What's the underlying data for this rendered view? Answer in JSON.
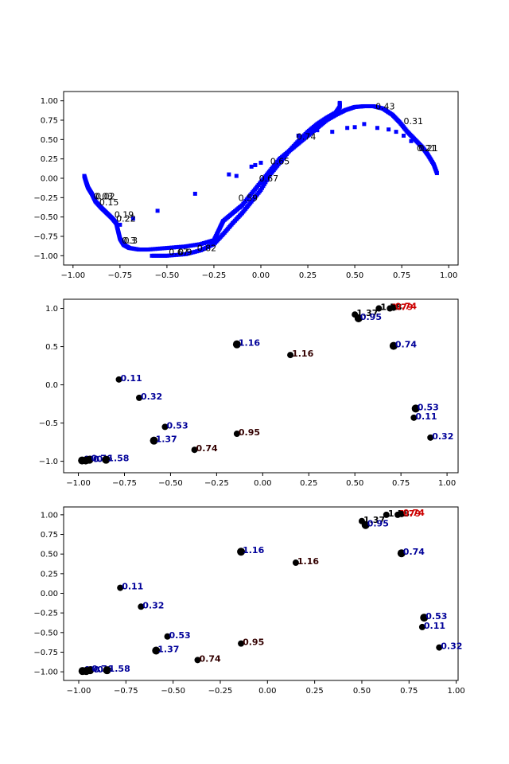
{
  "chart_data": [
    {
      "type": "scatter",
      "panel": "top",
      "xlim": [
        -1.05,
        1.05
      ],
      "ylim": [
        -1.12,
        1.12
      ],
      "xticks": [
        -1.0,
        -0.75,
        -0.5,
        -0.25,
        0.0,
        0.25,
        0.5,
        0.75,
        1.0
      ],
      "yticks": [
        1.0,
        0.75,
        0.5,
        0.25,
        0.0,
        -0.25,
        -0.5,
        -0.75,
        -1.0
      ],
      "xtick_labels": [
        "−1.00",
        "−0.75",
        "−0.50",
        "−0.25",
        "0.00",
        "0.25",
        "0.50",
        "0.75",
        "1.00"
      ],
      "ytick_labels": [
        "1.00",
        "0.75",
        "0.50",
        "0.25",
        "0.00",
        "−0.25",
        "−0.50",
        "−0.75",
        "−1.00"
      ],
      "marker_color": "#0000ff",
      "curve": {
        "outer": [
          [
            -0.94,
            0.03
          ],
          [
            -0.93,
            -0.05
          ],
          [
            -0.92,
            -0.12
          ],
          [
            -0.9,
            -0.2
          ],
          [
            -0.88,
            -0.3
          ],
          [
            -0.85,
            -0.38
          ],
          [
            -0.82,
            -0.45
          ],
          [
            -0.79,
            -0.52
          ],
          [
            -0.77,
            -0.58
          ],
          [
            -0.76,
            -0.68
          ],
          [
            -0.75,
            -0.78
          ],
          [
            -0.73,
            -0.86
          ],
          [
            -0.7,
            -0.9
          ],
          [
            -0.65,
            -0.92
          ],
          [
            -0.6,
            -0.92
          ],
          [
            -0.5,
            -0.9
          ],
          [
            -0.4,
            -0.88
          ],
          [
            -0.32,
            -0.85
          ],
          [
            -0.25,
            -0.8
          ],
          [
            -0.22,
            -0.65
          ],
          [
            -0.2,
            -0.55
          ],
          [
            -0.15,
            -0.45
          ],
          [
            -0.1,
            -0.35
          ],
          [
            -0.05,
            -0.2
          ],
          [
            0.0,
            -0.05
          ],
          [
            0.05,
            0.1
          ],
          [
            0.1,
            0.25
          ],
          [
            0.15,
            0.35
          ],
          [
            0.2,
            0.45
          ],
          [
            0.25,
            0.55
          ],
          [
            0.3,
            0.65
          ],
          [
            0.35,
            0.75
          ],
          [
            0.4,
            0.82
          ],
          [
            0.45,
            0.88
          ],
          [
            0.5,
            0.92
          ],
          [
            0.55,
            0.93
          ],
          [
            0.6,
            0.93
          ],
          [
            0.65,
            0.9
          ],
          [
            0.7,
            0.82
          ],
          [
            0.74,
            0.72
          ],
          [
            0.78,
            0.6
          ],
          [
            0.82,
            0.5
          ],
          [
            0.86,
            0.4
          ],
          [
            0.89,
            0.3
          ],
          [
            0.92,
            0.18
          ],
          [
            0.94,
            0.05
          ]
        ],
        "inner": [
          [
            -0.58,
            -1.0
          ],
          [
            -0.5,
            -1.0
          ],
          [
            -0.4,
            -0.98
          ],
          [
            -0.32,
            -0.93
          ],
          [
            -0.25,
            -0.85
          ],
          [
            -0.2,
            -0.72
          ],
          [
            -0.15,
            -0.58
          ],
          [
            -0.1,
            -0.45
          ],
          [
            -0.05,
            -0.3
          ],
          [
            0.0,
            -0.15
          ],
          [
            0.05,
            0.05
          ],
          [
            0.1,
            0.2
          ],
          [
            0.15,
            0.35
          ],
          [
            0.2,
            0.48
          ],
          [
            0.25,
            0.6
          ],
          [
            0.3,
            0.7
          ],
          [
            0.35,
            0.78
          ],
          [
            0.4,
            0.85
          ],
          [
            0.42,
            0.92
          ],
          [
            0.42,
            0.98
          ]
        ],
        "scatter": [
          [
            -0.68,
            -0.52
          ],
          [
            -0.75,
            -0.6
          ],
          [
            -0.55,
            -0.42
          ],
          [
            -0.35,
            -0.2
          ],
          [
            -0.17,
            0.05
          ],
          [
            -0.13,
            0.03
          ],
          [
            -0.05,
            0.15
          ],
          [
            -0.03,
            0.17
          ],
          [
            0.0,
            0.2
          ],
          [
            0.1,
            0.25
          ],
          [
            0.2,
            0.55
          ],
          [
            0.3,
            0.62
          ],
          [
            0.38,
            0.6
          ],
          [
            0.46,
            0.65
          ],
          [
            0.5,
            0.66
          ],
          [
            0.55,
            0.7
          ],
          [
            0.62,
            0.65
          ],
          [
            0.68,
            0.63
          ],
          [
            0.72,
            0.6
          ],
          [
            0.76,
            0.55
          ],
          [
            0.8,
            0.48
          ]
        ]
      },
      "labels": [
        {
          "x": 0.61,
          "y": 0.93,
          "text": "0.43"
        },
        {
          "x": 0.76,
          "y": 0.74,
          "text": "0.31"
        },
        {
          "x": 0.84,
          "y": 0.39,
          "text": "0.21"
        },
        {
          "x": 0.83,
          "y": 0.39,
          "text": "0.21"
        },
        {
          "x": 0.19,
          "y": 0.54,
          "text": "0.74"
        },
        {
          "x": 0.05,
          "y": 0.22,
          "text": "0.65"
        },
        {
          "x": -0.01,
          "y": 0.0,
          "text": "0.67"
        },
        {
          "x": -0.12,
          "y": -0.25,
          "text": "0.59"
        },
        {
          "x": -0.88,
          "y": -0.23,
          "text": "0.02"
        },
        {
          "x": -0.89,
          "y": -0.23,
          "text": "0.03"
        },
        {
          "x": -0.86,
          "y": -0.31,
          "text": "0.15"
        },
        {
          "x": -0.78,
          "y": -0.47,
          "text": "0.19"
        },
        {
          "x": -0.77,
          "y": -0.52,
          "text": "0.22"
        },
        {
          "x": -0.74,
          "y": -0.8,
          "text": "0.3"
        },
        {
          "x": -0.73,
          "y": -0.8,
          "text": "0.3"
        },
        {
          "x": -0.49,
          "y": -0.95,
          "text": "0.67"
        },
        {
          "x": -0.44,
          "y": -0.95,
          "text": "0.9"
        },
        {
          "x": -0.34,
          "y": -0.9,
          "text": "0.82"
        }
      ]
    },
    {
      "type": "scatter",
      "panel": "middle",
      "xlim": [
        -1.08,
        1.06
      ],
      "ylim": [
        -1.15,
        1.12
      ],
      "xticks": [
        -1.0,
        -0.75,
        -0.5,
        -0.25,
        0.0,
        0.25,
        0.5,
        0.75,
        1.0
      ],
      "yticks": [
        1.0,
        0.5,
        0.0,
        -0.5,
        -1.0
      ],
      "xtick_labels": [
        "−1.00",
        "−0.75",
        "−0.50",
        "−0.25",
        "0.00",
        "0.25",
        "0.50",
        "0.75",
        "1.00"
      ],
      "ytick_labels": [
        "1.0",
        "0.5",
        "0.0",
        "−0.5",
        "−1.0"
      ],
      "marker_color": "#0000ff",
      "point_color": "#000000",
      "points": [
        {
          "x": 0.63,
          "y": 1.0,
          "s": 4,
          "text": "1.58",
          "c": "#000000"
        },
        {
          "x": 0.69,
          "y": 1.0,
          "s": 4,
          "text": "1.79",
          "c": "#cc0000"
        },
        {
          "x": 0.71,
          "y": 1.01,
          "s": 4,
          "text": "0.74",
          "c": "#cc0000"
        },
        {
          "x": 0.5,
          "y": 0.92,
          "s": 4,
          "text": "1.37",
          "c": "#000000"
        },
        {
          "x": 0.52,
          "y": 0.87,
          "s": 5,
          "text": "0.95",
          "c": "#000099"
        },
        {
          "x": -0.14,
          "y": 0.53,
          "s": 5,
          "text": "1.16",
          "c": "#000099"
        },
        {
          "x": 0.15,
          "y": 0.39,
          "s": 4,
          "text": "1.16",
          "c": "#330000"
        },
        {
          "x": 0.71,
          "y": 0.51,
          "s": 5,
          "text": "0.74",
          "c": "#000099"
        },
        {
          "x": -0.78,
          "y": 0.07,
          "s": 4,
          "text": "0.11",
          "c": "#000099"
        },
        {
          "x": -0.67,
          "y": -0.17,
          "s": 4,
          "text": "0.32",
          "c": "#000099"
        },
        {
          "x": -0.53,
          "y": -0.55,
          "s": 4,
          "text": "0.53",
          "c": "#000099"
        },
        {
          "x": -0.59,
          "y": -0.73,
          "s": 5,
          "text": "1.37",
          "c": "#000099"
        },
        {
          "x": -0.37,
          "y": -0.85,
          "s": 4,
          "text": "0.74",
          "c": "#330000"
        },
        {
          "x": -0.14,
          "y": -0.64,
          "s": 4,
          "text": "0.95",
          "c": "#330000"
        },
        {
          "x": 0.83,
          "y": -0.31,
          "s": 5,
          "text": "0.53",
          "c": "#000099"
        },
        {
          "x": 0.82,
          "y": -0.43,
          "s": 4,
          "text": "0.11",
          "c": "#000099"
        },
        {
          "x": 0.91,
          "y": -0.69,
          "s": 4,
          "text": "0.32",
          "c": "#000099"
        },
        {
          "x": -0.98,
          "y": -0.99,
          "s": 5,
          "text": "0.0",
          "c": "#000099"
        },
        {
          "x": -0.96,
          "y": -0.99,
          "s": 5,
          "text": "0.0",
          "c": "#000099"
        },
        {
          "x": -0.94,
          "y": -0.98,
          "s": 5,
          "text": "0.76",
          "c": "#000099"
        },
        {
          "x": -0.85,
          "y": -0.98,
          "s": 5,
          "text": "1.58",
          "c": "#000099"
        }
      ]
    },
    {
      "type": "scatter",
      "panel": "bottom",
      "xlim": [
        -1.08,
        1.01
      ],
      "ylim": [
        -1.11,
        1.1
      ],
      "xticks": [
        -1.0,
        -0.75,
        -0.5,
        -0.25,
        0.0,
        0.25,
        0.5,
        0.75,
        1.0
      ],
      "yticks": [
        1.0,
        0.75,
        0.5,
        0.25,
        0.0,
        -0.25,
        -0.5,
        -0.75,
        -1.0
      ],
      "xtick_labels": [
        "−1.00",
        "−0.75",
        "−0.50",
        "−0.25",
        "0.00",
        "0.25",
        "0.50",
        "0.75",
        "1.00"
      ],
      "ytick_labels": [
        "1.00",
        "0.75",
        "0.50",
        "0.25",
        "0.00",
        "−0.25",
        "−0.50",
        "−0.75",
        "−1.00"
      ],
      "point_color": "#000000"
    }
  ]
}
